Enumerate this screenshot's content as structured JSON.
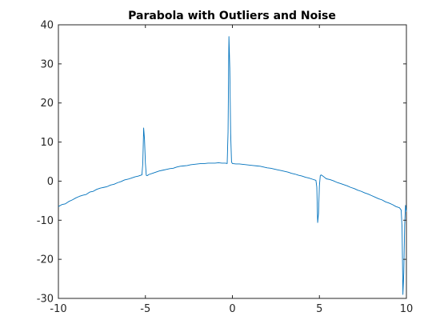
{
  "chart_data": {
    "type": "line",
    "title": "Parabola with Outliers and Noise",
    "xlabel": "",
    "ylabel": "",
    "xlim": [
      -10,
      10
    ],
    "ylim": [
      -30,
      40
    ],
    "x_ticks": [
      -10,
      -5,
      0,
      5,
      10
    ],
    "y_ticks": [
      -30,
      -20,
      -10,
      0,
      10,
      20,
      30,
      40
    ],
    "x_tick_labels": [
      "-10",
      "-5",
      "0",
      "5",
      "10"
    ],
    "y_tick_labels": [
      "-30",
      "-20",
      "-10",
      "0",
      "10",
      "20",
      "30",
      "40"
    ],
    "grid": false,
    "series": [
      {
        "color": "#0072BD",
        "baseline": "y = -0.1*(x+0.5)^2 + 4.6 with noise",
        "x": [
          -10.0,
          -9.8,
          -9.6,
          -9.4,
          -9.2,
          -9.0,
          -8.8,
          -8.6,
          -8.4,
          -8.2,
          -8.0,
          -7.8,
          -7.6,
          -7.4,
          -7.2,
          -7.0,
          -6.8,
          -6.6,
          -6.4,
          -6.2,
          -6.0,
          -5.8,
          -5.6,
          -5.4,
          -5.2,
          -5.15,
          -5.1,
          -5.05,
          -5.0,
          -4.95,
          -4.9,
          -4.8,
          -4.6,
          -4.4,
          -4.2,
          -4.0,
          -3.8,
          -3.6,
          -3.4,
          -3.2,
          -3.0,
          -2.8,
          -2.6,
          -2.4,
          -2.2,
          -2.0,
          -1.8,
          -1.6,
          -1.4,
          -1.2,
          -1.0,
          -0.8,
          -0.6,
          -0.4,
          -0.3,
          -0.25,
          -0.2,
          -0.15,
          -0.1,
          -0.05,
          0.0,
          0.2,
          0.4,
          0.6,
          0.8,
          1.0,
          1.2,
          1.4,
          1.6,
          1.8,
          2.0,
          2.2,
          2.4,
          2.6,
          2.8,
          3.0,
          3.2,
          3.4,
          3.6,
          3.8,
          4.0,
          4.2,
          4.4,
          4.6,
          4.8,
          4.85,
          4.9,
          4.95,
          5.0,
          5.05,
          5.1,
          5.2,
          5.4,
          5.6,
          5.8,
          6.0,
          6.2,
          6.4,
          6.6,
          6.8,
          7.0,
          7.2,
          7.4,
          7.6,
          7.8,
          8.0,
          8.2,
          8.4,
          8.6,
          8.8,
          9.0,
          9.2,
          9.4,
          9.6,
          9.7,
          9.75,
          9.8,
          9.85,
          9.9,
          9.95,
          10.0
        ],
        "y": [
          -6.5,
          -6.0,
          -5.8,
          -5.2,
          -4.8,
          -4.3,
          -3.9,
          -3.6,
          -3.4,
          -2.8,
          -2.6,
          -2.1,
          -1.8,
          -1.6,
          -1.4,
          -1.0,
          -0.8,
          -0.4,
          -0.1,
          0.3,
          0.5,
          0.8,
          1.1,
          1.3,
          1.6,
          4.5,
          13.6,
          10.6,
          4.6,
          1.5,
          1.4,
          1.7,
          2.0,
          2.3,
          2.6,
          2.8,
          3.0,
          3.2,
          3.3,
          3.6,
          3.8,
          3.9,
          4.0,
          4.2,
          4.3,
          4.4,
          4.5,
          4.5,
          4.6,
          4.6,
          4.6,
          4.7,
          4.6,
          4.6,
          4.5,
          12.6,
          37.0,
          28.9,
          12.2,
          4.9,
          4.5,
          4.4,
          4.4,
          4.3,
          4.2,
          4.1,
          4.0,
          3.9,
          3.8,
          3.6,
          3.4,
          3.3,
          3.1,
          2.9,
          2.7,
          2.5,
          2.3,
          2.0,
          1.8,
          1.5,
          1.3,
          1.0,
          0.8,
          0.5,
          0.2,
          -1.5,
          -10.6,
          -8.2,
          -1.2,
          1.4,
          1.6,
          1.3,
          0.6,
          0.4,
          0.1,
          -0.3,
          -0.6,
          -0.9,
          -1.2,
          -1.6,
          -1.9,
          -2.3,
          -2.6,
          -3.0,
          -3.3,
          -3.7,
          -4.1,
          -4.5,
          -4.8,
          -5.3,
          -5.6,
          -6.0,
          -6.5,
          -6.8,
          -7.4,
          -11.8,
          -29.0,
          -23.4,
          -11.2,
          -6.2,
          -7.8
        ]
      }
    ]
  }
}
